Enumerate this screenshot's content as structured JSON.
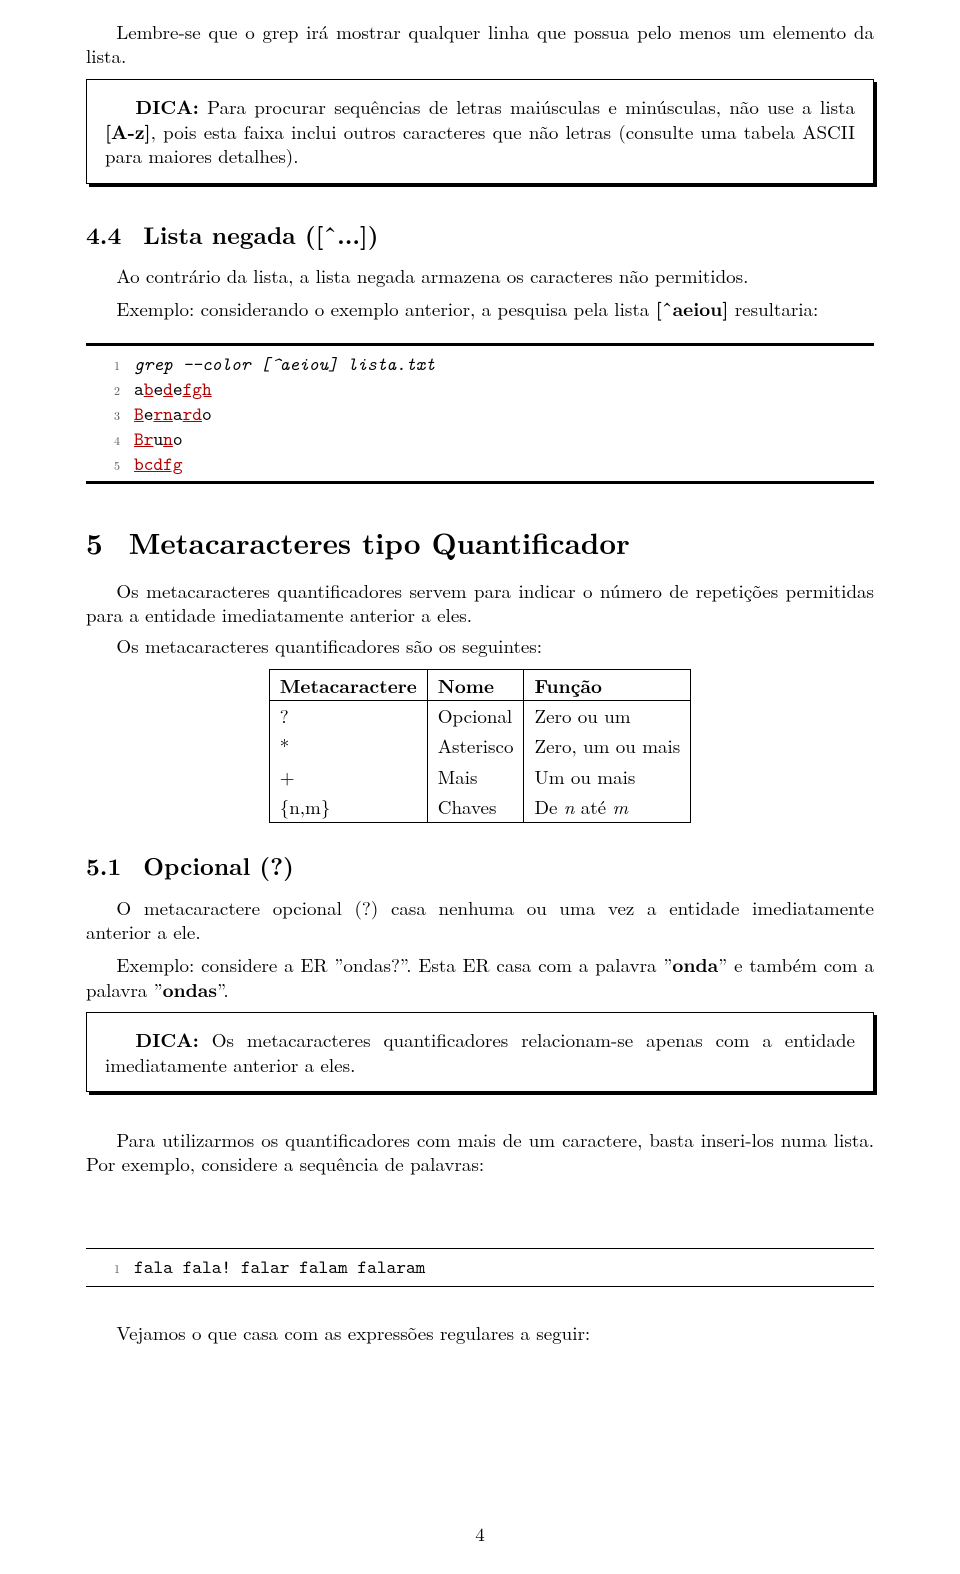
{
  "p_intro": "Lembre-se que o grep irá mostrar qualquer linha que possua pelo menos um elemento da lista.",
  "dica1_label": "DICA:",
  "dica1_text": " Para procurar sequências de letras maiúsculas e minúsculas, não use a lista ",
  "dica1_bold": "[A-z]",
  "dica1_text2": ", pois esta faixa inclui outros caracteres que não letras (consulte uma tabela ASCII para maiores detalhes).",
  "s44_num": "4.4",
  "s44_title": "Lista negada ([ˆ...])",
  "s44_p1": "Ao contrário da lista, a lista negada armazena os caracteres não permitidos.",
  "s44_p2a": "Exemplo: considerando o exemplo anterior, a pesquisa pela lista ",
  "s44_p2b": "[ˆaeiou]",
  "s44_p2c": " resultaria:",
  "code1": {
    "lines": [
      {
        "n": "1",
        "raw": "grep --color [^aeiou] lista.txt",
        "italic": true
      },
      {
        "n": "2",
        "html": "a<span class='ul-red'>b</span>e<span class='ul-red'>d</span>e<span class='ul-red'>fgh</span>"
      },
      {
        "n": "3",
        "html": "<span class='ul-red'>B</span>e<span class='ul-red'>rn</span>a<span class='ul-red'>rd</span>o"
      },
      {
        "n": "4",
        "html": "<span class='ul-red'>Br</span>u<span class='ul-red'>n</span>o"
      },
      {
        "n": "5",
        "html": "<span class='ul-red'>bcdfg</span>"
      }
    ]
  },
  "s5_num": "5",
  "s5_title": "Metacaracteres tipo Quantificador",
  "s5_p1": "Os metacaracteres quantificadores servem para indicar o número de repetições permitidas para a entidade imediatamente anterior a eles.",
  "s5_p2": "Os metacaracteres quantificadores são os seguintes:",
  "table": {
    "headers": [
      "Metacaractere",
      "Nome",
      "Função"
    ],
    "rows": [
      [
        "?",
        "Opcional",
        "Zero ou um"
      ],
      [
        "*",
        "Asterisco",
        "Zero, um ou mais"
      ],
      [
        "+",
        "Mais",
        "Um ou mais"
      ],
      [
        "{n,m}",
        "Chaves",
        [
          "De ",
          [
            "i",
            "n"
          ],
          " até ",
          [
            "i",
            "m"
          ]
        ]
      ]
    ]
  },
  "s51_num": "5.1",
  "s51_title": "Opcional (?)",
  "s51_p1": "O metacaractere opcional (?) casa nenhuma ou uma vez a entidade imediatamente anterior a ele.",
  "s51_p2a": "Exemplo: considere a ER ”ondas?”. Esta ER casa com a palavra ”",
  "s51_p2b": "onda",
  "s51_p2c": "” e também com a palavra ”",
  "s51_p2d": "ondas",
  "s51_p2e": "”.",
  "dica2_label": "DICA:",
  "dica2_text": " Os metacaracteres quantificadores relacionam-se apenas com a entidade imediatamente anterior a eles.",
  "s5_p3": "Para utilizarmos os quantificadores com mais de um caractere, basta inseri-los numa lista. Por exemplo, considere a sequência de palavras:",
  "code2": {
    "n": "1",
    "text": "fala fala! falar falam falaram"
  },
  "s5_p4": "Vejamos o que casa com as expressões regulares a seguir:",
  "pagenum": "4"
}
